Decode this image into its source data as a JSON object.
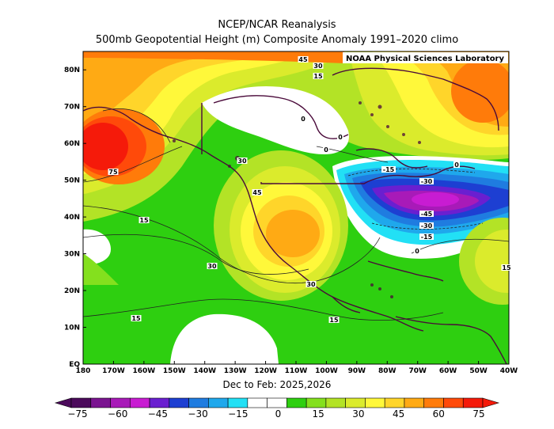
{
  "header": {
    "title": "NCEP/NCAR Reanalysis",
    "subtitle": "500mb Geopotential Height (m) Composite Anomaly 1991–2020 climo"
  },
  "period": "Dec to Feb: 2025,2026",
  "credit": "NOAA Physical Sciences Laboratory",
  "map": {
    "lon_ticks": [
      "180",
      "170W",
      "160W",
      "150W",
      "140W",
      "130W",
      "120W",
      "110W",
      "100W",
      "90W",
      "80W",
      "70W",
      "60W",
      "50W",
      "40W"
    ],
    "lat_ticks": [
      "EQ",
      "10N",
      "20N",
      "30N",
      "40N",
      "50N",
      "60N",
      "70N",
      "80N"
    ],
    "contour_labels": [
      "45",
      "30",
      "15",
      "0",
      "75",
      "30",
      "45",
      "15",
      "30",
      "15",
      "30",
      "15",
      "0",
      "-15",
      "-30",
      "-45",
      "-30",
      "-15",
      "0",
      "0",
      "0",
      "15"
    ]
  },
  "colorbar": {
    "labels": [
      "−75",
      "−60",
      "−45",
      "−30",
      "−15",
      "0",
      "15",
      "30",
      "45",
      "60",
      "75"
    ],
    "colors": [
      "#4b0a5b",
      "#7a1490",
      "#a81ab8",
      "#c81cd2",
      "#6a1fd0",
      "#1d3fd2",
      "#1f7ce0",
      "#1fa8ec",
      "#22e0f5",
      "#ffffff",
      "#ffffff",
      "#2ecf10",
      "#84e01e",
      "#b3e326",
      "#dbeb2c",
      "#fff83a",
      "#ffd52a",
      "#ffaa14",
      "#ff7b0a",
      "#ff4a0a",
      "#f51a0a"
    ]
  },
  "fields": {
    "ocean_base": "#2ecf10",
    "land_outline": "#4a0a3a"
  }
}
